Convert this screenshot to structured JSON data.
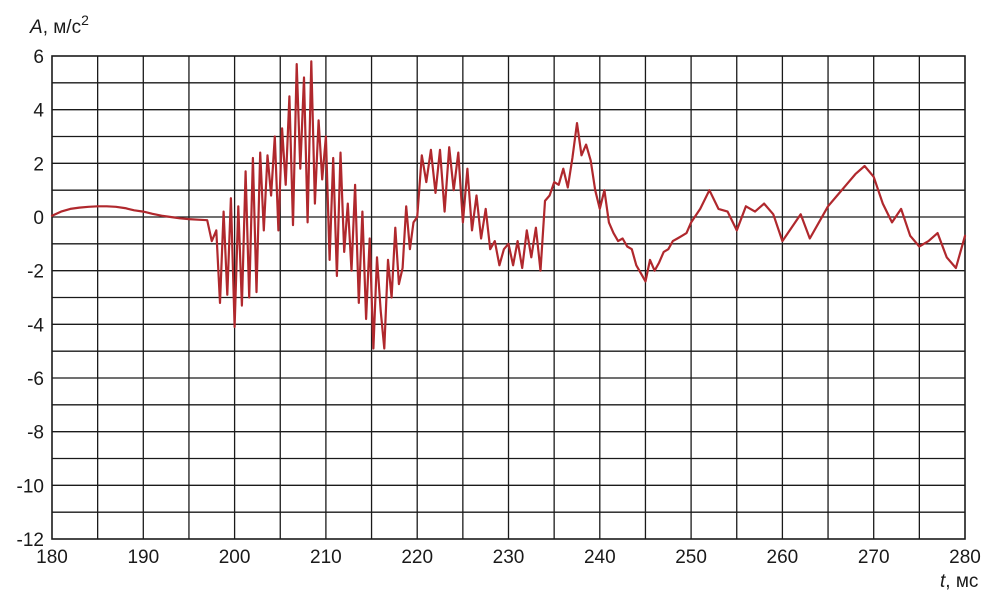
{
  "chart_data": {
    "type": "line",
    "title": "",
    "ylabel": {
      "var": "A",
      "unit": ", м/с",
      "sup": "2"
    },
    "xlabel": {
      "var": "t",
      "unit": ", мс"
    },
    "xlim": [
      180,
      280
    ],
    "ylim": [
      -12,
      6
    ],
    "xticks": [
      180,
      190,
      200,
      210,
      220,
      230,
      240,
      250,
      260,
      270,
      280
    ],
    "yticks": [
      6,
      4,
      2,
      0,
      -2,
      -4,
      -6,
      -8,
      -10,
      -12
    ],
    "grid": {
      "x_step": 5,
      "y_step": 1
    },
    "series_color": "#b0282d",
    "series": [
      {
        "x": [
          180,
          181,
          182,
          183,
          184,
          185,
          186,
          187,
          188,
          189,
          190,
          191,
          192,
          193,
          194,
          195,
          196,
          197,
          197.5,
          198,
          198.4,
          198.8,
          199.2,
          199.6,
          200,
          200.4,
          200.8,
          201.2,
          201.6,
          202,
          202.4,
          202.8,
          203.2,
          203.6,
          204,
          204.4,
          204.8,
          205.2,
          205.6,
          206,
          206.4,
          206.8,
          207.2,
          207.6,
          208,
          208.4,
          208.8,
          209.2,
          209.6,
          210,
          210.4,
          210.8,
          211.2,
          211.6,
          212,
          212.4,
          212.8,
          213.2,
          213.6,
          214,
          214.4,
          214.8,
          215.2,
          215.6,
          216,
          216.4,
          216.8,
          217.2,
          217.6,
          218,
          218.4,
          218.8,
          219.2,
          219.6,
          220,
          220.5,
          221,
          221.5,
          222,
          222.5,
          223,
          223.5,
          224,
          224.5,
          225,
          225.5,
          226,
          226.5,
          227,
          227.5,
          228,
          228.5,
          229,
          229.5,
          230,
          230.5,
          231,
          231.5,
          232,
          232.5,
          233,
          233.5,
          234,
          234.5,
          235,
          235.5,
          236,
          236.5,
          237,
          237.5,
          238,
          238.5,
          239,
          239.5,
          240,
          240.5,
          241,
          241.5,
          242,
          242.5,
          243,
          243.5,
          244,
          244.5,
          245,
          245.5,
          246,
          246.5,
          247,
          247.5,
          248,
          248.5,
          249,
          249.5,
          250,
          251,
          252,
          253,
          254,
          255,
          256,
          257,
          258,
          259,
          260,
          261,
          262,
          263,
          264,
          265,
          266,
          267,
          268,
          269,
          270,
          271,
          272,
          273,
          274,
          275,
          276,
          277,
          278,
          279,
          280
        ],
        "y": [
          0.05,
          0.2,
          0.3,
          0.35,
          0.38,
          0.4,
          0.4,
          0.38,
          0.33,
          0.25,
          0.2,
          0.12,
          0.05,
          0,
          -0.05,
          -0.08,
          -0.1,
          -0.12,
          -0.9,
          -0.5,
          -3.2,
          0.2,
          -2.9,
          0.7,
          -4.1,
          0.4,
          -3.3,
          1.7,
          -3.0,
          2.2,
          -2.8,
          2.4,
          -0.5,
          2.3,
          0.8,
          3.0,
          -0.5,
          3.3,
          1.2,
          4.5,
          -0.3,
          5.7,
          1.8,
          5.2,
          -0.2,
          5.8,
          0.5,
          3.6,
          1.4,
          3.0,
          -1.6,
          2.2,
          -2.2,
          2.4,
          -1.3,
          0.5,
          -2.0,
          1.2,
          -3.2,
          0.2,
          -3.8,
          -0.8,
          -4.9,
          -1.5,
          -3.5,
          -4.9,
          -1.6,
          -3.0,
          -0.4,
          -2.5,
          -1.9,
          0.4,
          -1.2,
          -0.2,
          0,
          2.3,
          1.3,
          2.5,
          0.9,
          2.5,
          0.2,
          2.6,
          1.0,
          2.4,
          -0.2,
          1.8,
          -0.5,
          0.8,
          -0.8,
          0.3,
          -1.2,
          -0.9,
          -1.8,
          -1.2,
          -1.0,
          -1.8,
          -0.9,
          -1.9,
          -0.5,
          -1.5,
          -0.4,
          -2.0,
          0.6,
          0.8,
          1.3,
          1.2,
          1.8,
          1.1,
          2.2,
          3.5,
          2.3,
          2.7,
          2.1,
          1.0,
          0.3,
          1.0,
          -0.2,
          -0.6,
          -0.9,
          -0.8,
          -1.1,
          -1.2,
          -1.8,
          -2.1,
          -2.4,
          -1.6,
          -2.0,
          -1.7,
          -1.3,
          -1.2,
          -0.9,
          -0.8,
          -0.7,
          -0.6,
          -0.2,
          0.3,
          1.0,
          0.3,
          0.2,
          -0.5,
          0.4,
          0.2,
          0.5,
          0.1,
          -0.9,
          -0.4,
          0.1,
          -0.8,
          -0.2,
          0.4,
          0.8,
          1.2,
          1.6,
          1.9,
          1.5,
          0.5,
          -0.2,
          0.3,
          -0.7,
          -1.1,
          -0.9,
          -0.6,
          -1.5,
          -1.9,
          -0.7
        ]
      }
    ]
  }
}
